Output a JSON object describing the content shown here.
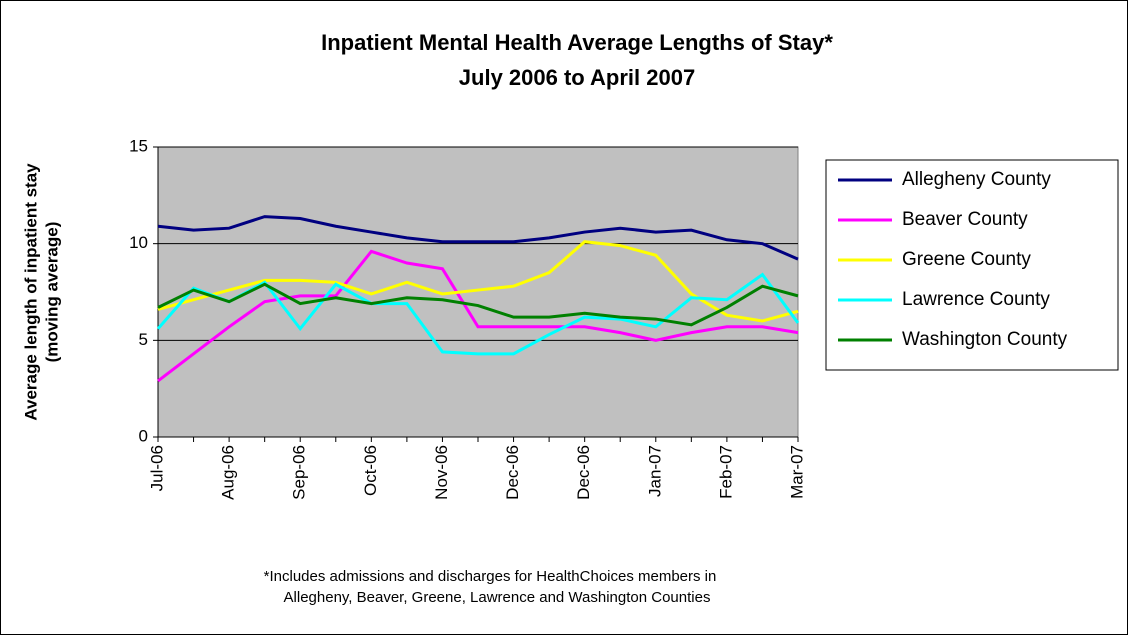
{
  "chart_data": {
    "type": "line",
    "title": "Inpatient Mental Health Average Lengths of Stay*",
    "subtitle": "July 2006 to April 2007",
    "ylabel": [
      "Average length of inpatient stay",
      "(moving average)"
    ],
    "annotations": [
      "*Includes admissions and discharges for HealthChoices members in",
      "Allegheny, Beaver, Greene, Lawrence and Washington Counties"
    ],
    "categories": [
      "Jul-06",
      null,
      "Aug-06",
      null,
      "Sep-06",
      null,
      "Oct-06",
      null,
      "Nov-06",
      null,
      "Dec-06",
      null,
      "Dec-06",
      null,
      "Jan-07",
      null,
      "Feb-07",
      null,
      "Mar-07"
    ],
    "series": [
      {
        "name": "Allegheny County",
        "color": "#000080",
        "values": [
          10.9,
          10.7,
          10.8,
          11.4,
          11.3,
          10.9,
          10.6,
          10.3,
          10.1,
          10.1,
          10.1,
          10.3,
          10.6,
          10.8,
          10.6,
          10.7,
          10.2,
          10.0,
          9.2
        ]
      },
      {
        "name": "Beaver County",
        "color": "#ff00ff",
        "values": [
          2.9,
          4.3,
          5.7,
          7.0,
          7.3,
          7.3,
          9.6,
          9.0,
          8.7,
          5.7,
          5.7,
          5.7,
          5.7,
          5.4,
          5.0,
          5.4,
          5.7,
          5.7,
          5.4
        ]
      },
      {
        "name": "Greene County",
        "color": "#ffff00",
        "values": [
          6.6,
          7.1,
          7.6,
          8.1,
          8.1,
          8.0,
          7.4,
          8.0,
          7.4,
          7.6,
          7.8,
          8.5,
          10.1,
          9.9,
          9.4,
          7.4,
          6.3,
          6.0,
          6.5
        ]
      },
      {
        "name": "Lawrence County",
        "color": "#00ffff",
        "values": [
          5.6,
          7.7,
          7.0,
          8.0,
          5.6,
          7.9,
          6.9,
          6.9,
          4.4,
          4.3,
          4.3,
          5.3,
          6.2,
          6.1,
          5.7,
          7.2,
          7.1,
          8.4,
          5.9
        ]
      },
      {
        "name": "Washington County",
        "color": "#008000",
        "values": [
          6.7,
          7.6,
          7.0,
          7.9,
          6.9,
          7.2,
          6.9,
          7.2,
          7.1,
          6.8,
          6.2,
          6.2,
          6.4,
          6.2,
          6.1,
          5.8,
          6.7,
          7.8,
          7.3
        ]
      }
    ],
    "ylim": [
      0,
      15
    ],
    "yticks": [
      0,
      5,
      10,
      15
    ],
    "grid": true,
    "legend": "right",
    "plot_background": "#c0c0c0"
  }
}
